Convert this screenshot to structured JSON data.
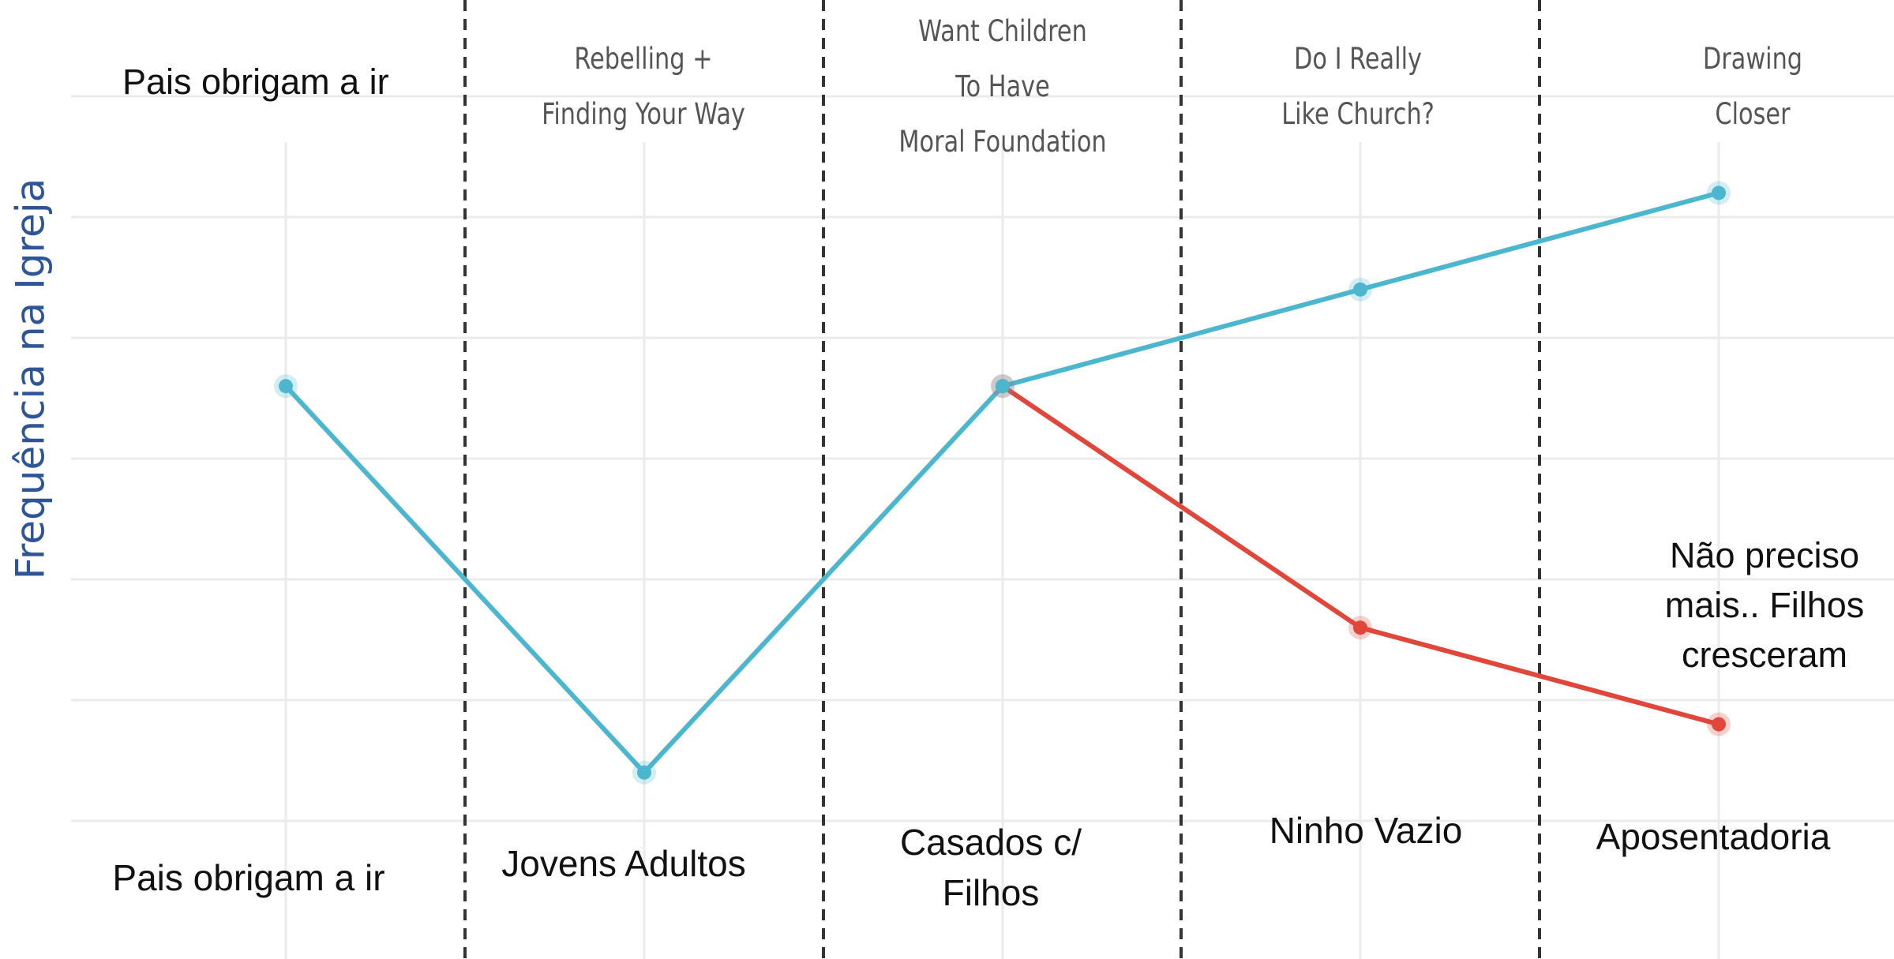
{
  "chart_data": {
    "type": "line",
    "title": "",
    "xlabel": "",
    "ylabel": "Frequência na Igreja",
    "categories": [
      "Pais obrigam a ir",
      "Jovens Adultos",
      "Casados c/ Filhos",
      "Ninho Vazio",
      "Aposentadoria"
    ],
    "top_labels": [
      "Pais obrigam a ir",
      "Rebelling +\nFinding Your Way",
      "Want Children\nTo Have\nMoral Foundation",
      "Do I Really\nLike Church?",
      "Drawing\nCloser"
    ],
    "series": [
      {
        "color": "#4db6cf",
        "values": [
          3.6,
          0.4,
          3.6,
          4.4,
          5.2
        ]
      },
      {
        "color": "#e0473a",
        "values": [
          null,
          null,
          3.6,
          1.6,
          0.8
        ]
      }
    ],
    "annotation": "Não preciso\nmais.. Filhos\ncresceram",
    "ylim": [
      0,
      6
    ],
    "grid": true,
    "dividers": "dashed vertical lines between stages"
  }
}
